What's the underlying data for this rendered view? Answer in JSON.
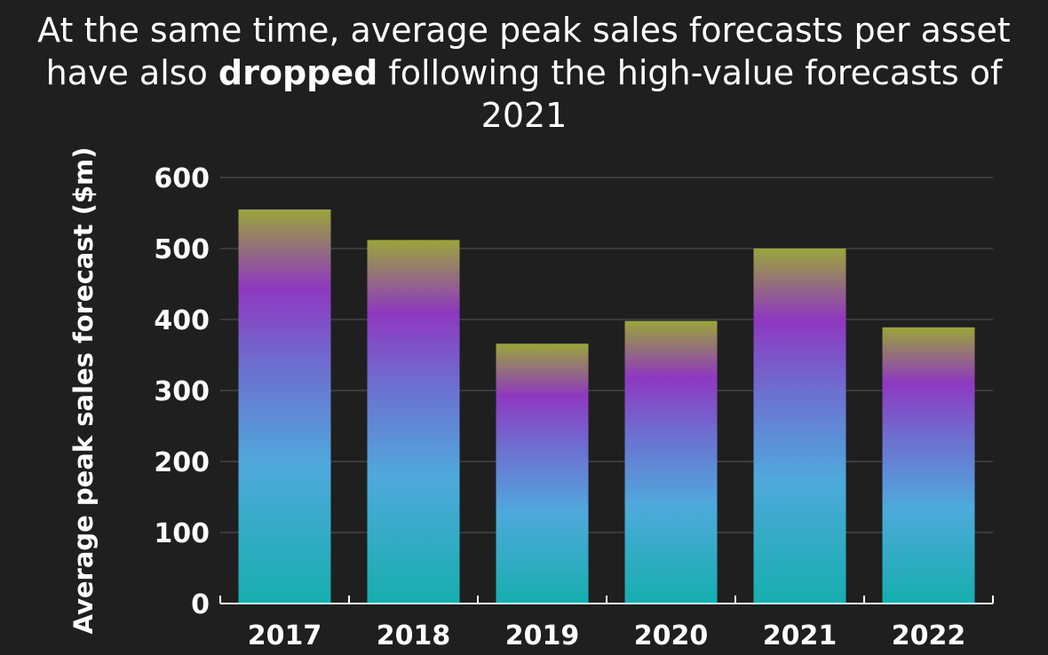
{
  "title": {
    "before": "At the same time, average peak sales forecasts per asset have also ",
    "bold": "dropped",
    "after": " following the high-value forecasts of 2021"
  },
  "colors": {
    "background": "#1f1f1f",
    "gridline": "#4a4a4a",
    "axis": "#ffffff",
    "gradient_bottom": "#16aeae",
    "gradient_lower_mid": "#4fa9dc",
    "gradient_mid": "#6d6fd0",
    "gradient_upper_mid": "#8e38c0",
    "gradient_top": "#9aa53a"
  },
  "chart_data": {
    "type": "bar",
    "title": "At the same time, average peak sales forecasts per asset have also dropped following the high-value forecasts of 2021",
    "xlabel": "",
    "ylabel": "Average peak sales forecast ($m)",
    "categories": [
      "2017",
      "2018",
      "2019",
      "2020",
      "2021",
      "2022"
    ],
    "values": [
      555,
      512,
      366,
      398,
      500,
      389
    ],
    "ylim": [
      0,
      600
    ],
    "yticks": [
      0,
      100,
      200,
      300,
      400,
      500,
      600
    ],
    "grid": true,
    "legend": "none"
  }
}
